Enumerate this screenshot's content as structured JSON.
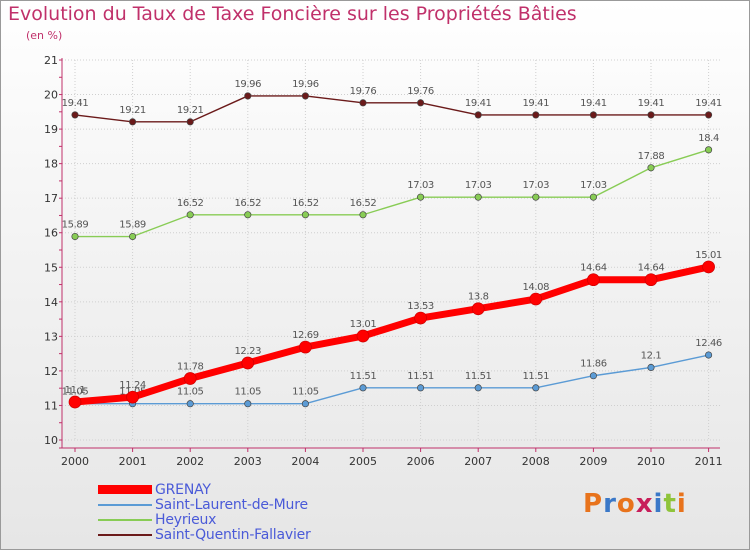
{
  "header": {
    "title": "Evolution du Taux de Taxe Foncière sur les Propriétés Bâties",
    "unit": "(en %)"
  },
  "chart_data": {
    "type": "line",
    "title": "Evolution du Taux de Taxe Foncière sur les Propriétés Bâties",
    "ylabel": "(en %)",
    "categories": [
      "2000",
      "2001",
      "2002",
      "2003",
      "2004",
      "2005",
      "2006",
      "2007",
      "2008",
      "2009",
      "2010",
      "2011"
    ],
    "ylim": [
      10,
      21
    ],
    "yticks": [
      "10",
      "11",
      "12",
      "13",
      "14",
      "15",
      "16",
      "17",
      "18",
      "19",
      "20",
      "21"
    ],
    "grid": true,
    "legend_position": "bottom-left",
    "series": [
      {
        "name": "Saint-Quentin-Fallavier",
        "color": "#6b1a1a",
        "values": [
          19.41,
          19.21,
          19.21,
          19.96,
          19.96,
          19.76,
          19.76,
          19.41,
          19.41,
          19.41,
          19.41,
          19.41
        ],
        "labels": [
          "19.41",
          "19.21",
          "19.21",
          "19.96",
          "19.96",
          "19.76",
          "19.76",
          "19.41",
          "19.41",
          "19.41",
          "19.41",
          "19.41"
        ]
      },
      {
        "name": "Heyrieux",
        "color": "#88cc55",
        "values": [
          15.89,
          15.89,
          16.52,
          16.52,
          16.52,
          16.52,
          17.03,
          17.03,
          17.03,
          17.03,
          17.88,
          18.4
        ],
        "labels": [
          "15.89",
          "15.89",
          "16.52",
          "16.52",
          "16.52",
          "16.52",
          "17.03",
          "17.03",
          "17.03",
          "17.03",
          "17.88",
          "18.4"
        ]
      },
      {
        "name": "Saint-Laurent-de-Mure",
        "color": "#5b9bd5",
        "values": [
          11.05,
          11.05,
          11.05,
          11.05,
          11.05,
          11.51,
          11.51,
          11.51,
          11.51,
          11.86,
          12.1,
          12.46
        ],
        "labels": [
          "11.05",
          "11.05",
          "11.05",
          "11.05",
          "11.05",
          "11.51",
          "11.51",
          "11.51",
          "11.51",
          "11.86",
          "12.1",
          "12.46"
        ]
      },
      {
        "name": "GRENAY",
        "color": "#ff0000",
        "values": [
          11.1,
          11.24,
          11.78,
          12.23,
          12.69,
          13.01,
          13.53,
          13.8,
          14.08,
          14.64,
          14.64,
          15.01
        ],
        "labels": [
          "11.1",
          "11.24",
          "11.78",
          "12.23",
          "12.69",
          "13.01",
          "13.53",
          "13.8",
          "14.08",
          "14.64",
          "14.64",
          "15.01"
        ]
      }
    ]
  },
  "legend": {
    "items": [
      {
        "label": "GRENAY",
        "color": "#ff0000"
      },
      {
        "label": "Saint-Laurent-de-Mure",
        "color": "#5b9bd5"
      },
      {
        "label": "Heyrieux",
        "color": "#88cc55"
      },
      {
        "label": "Saint-Quentin-Fallavier",
        "color": "#6b1a1a"
      }
    ]
  },
  "logo": {
    "text": "Proxiti",
    "letters": [
      "P",
      "r",
      "o",
      "x",
      "i",
      "t",
      "i"
    ],
    "colors": [
      "#e8731c",
      "#3a78c8",
      "#e8731c",
      "#c81e5a",
      "#3a78c8",
      "#8fc43a",
      "#e8731c"
    ]
  }
}
